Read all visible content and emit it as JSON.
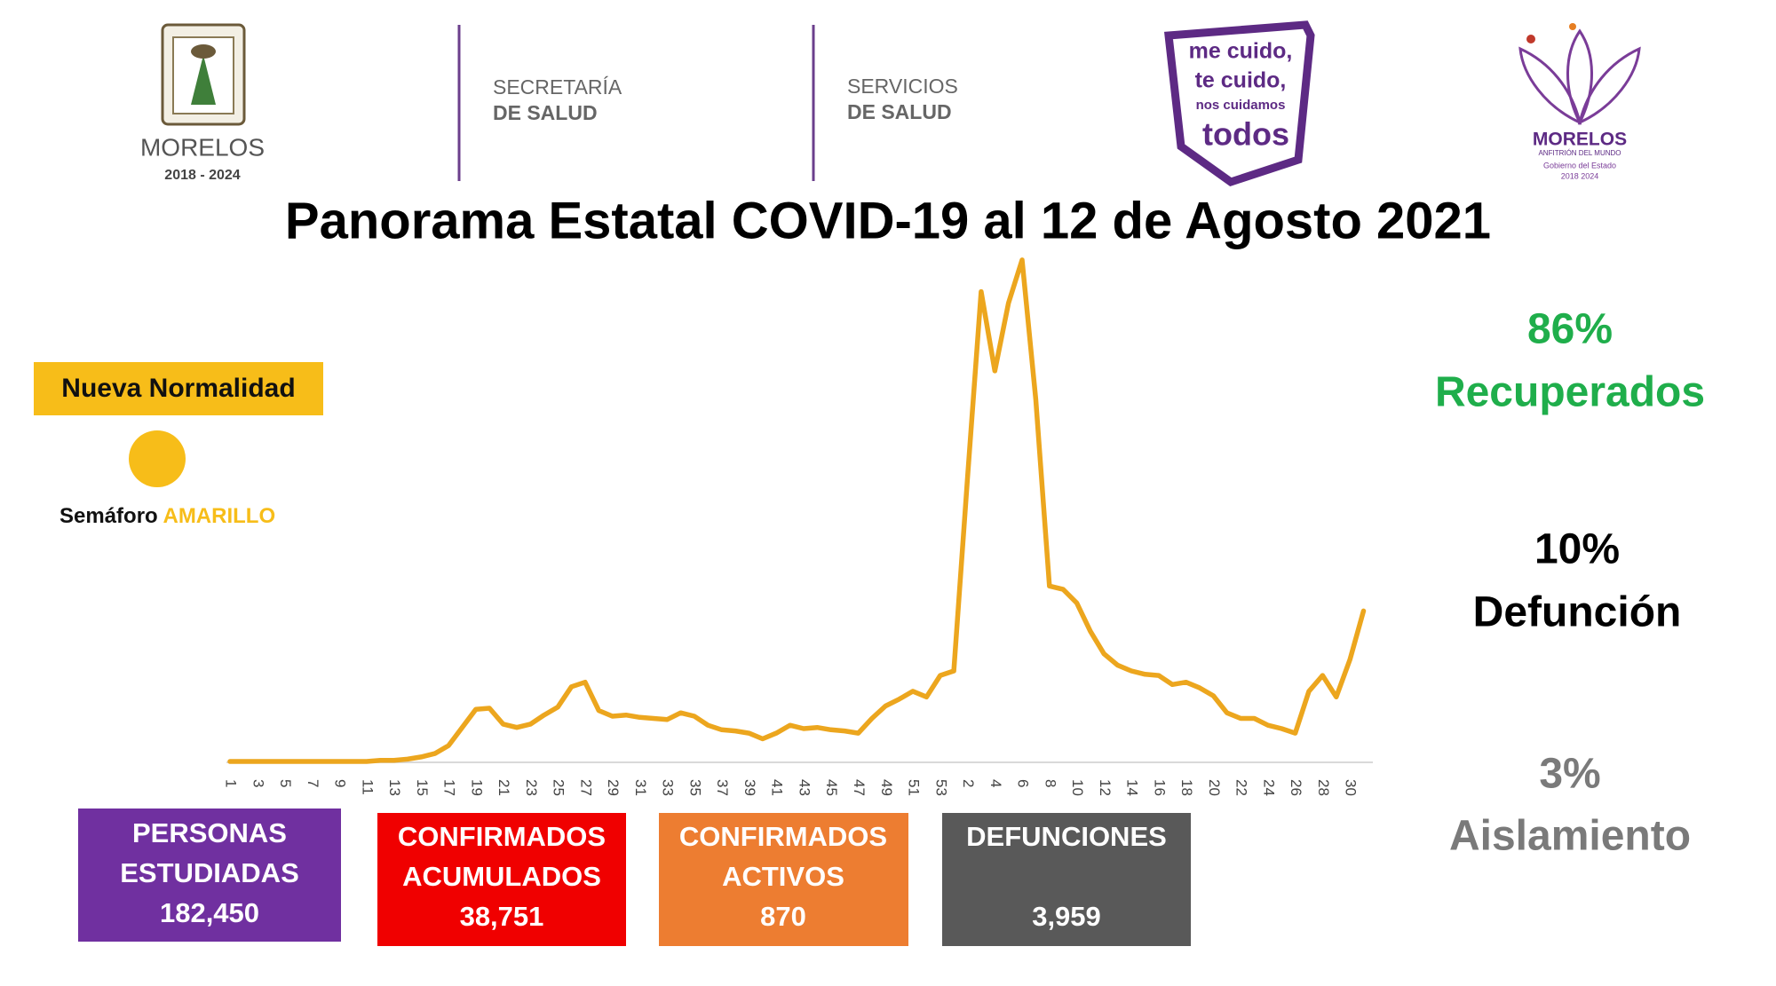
{
  "logos": {
    "state": {
      "name": "MORELOS",
      "years": "2018 - 2024"
    },
    "secretaria": {
      "line1": "SECRETARÍA",
      "line2": "DE SALUD"
    },
    "servicios": {
      "line1": "SERVICIOS",
      "line2": "DE SALUD"
    },
    "campaign": {
      "line1": "me cuido,",
      "line2": "te cuido,",
      "line3": "nos cuidamos",
      "line4": "todos"
    },
    "government": {
      "name": "MORELOS",
      "motto": "ANFITRIÓN DEL MUNDO",
      "line1": "Gobierno del Estado",
      "years": "2018 2024"
    }
  },
  "title": "Panorama Estatal COVID-19 al 12 de Agosto 2021",
  "status": {
    "label": "Nueva Normalidad",
    "semaforo": "Semáforo",
    "color_word": "AMARILLO"
  },
  "rates": [
    {
      "value": "86%",
      "label": "Recuperados"
    },
    {
      "value": "10%",
      "label": "Defunción"
    },
    {
      "value": "3%",
      "label": "Aislamiento"
    }
  ],
  "boxes": [
    {
      "line1": "PERSONAS",
      "line2": "ESTUDIADAS",
      "value": "182,450"
    },
    {
      "line1": "CONFIRMADOS",
      "line2": "ACUMULADOS",
      "value": "38,751"
    },
    {
      "line1": "CONFIRMADOS",
      "line2": "ACTIVOS",
      "value": "870"
    },
    {
      "line1": "DEFUNCIONES",
      "value": "3,959"
    }
  ],
  "chart_data": {
    "type": "line",
    "color": "#eca61e",
    "ylim": [
      0,
      450
    ],
    "categories": [
      "1",
      null,
      "3",
      null,
      "5",
      null,
      "7",
      null,
      "9",
      null,
      "11",
      null,
      "13",
      null,
      "15",
      null,
      "17",
      null,
      "19",
      null,
      "21",
      null,
      "23",
      null,
      "25",
      null,
      "27",
      null,
      "29",
      null,
      "31",
      null,
      "33",
      null,
      "35",
      null,
      "37",
      null,
      "39",
      null,
      "41",
      null,
      "43",
      null,
      "45",
      null,
      "47",
      null,
      "49",
      null,
      "51",
      null,
      "53",
      null,
      "2",
      null,
      "4",
      null,
      "6",
      null,
      "8",
      null,
      "10",
      null,
      "12",
      null,
      "14",
      null,
      "16",
      null,
      "18",
      null,
      "20",
      null,
      "22",
      null,
      "24",
      null,
      "26",
      null,
      "28",
      null,
      "30",
      null
    ],
    "values": [
      0,
      0,
      0,
      0,
      0,
      0,
      0,
      0,
      0,
      0,
      0,
      1,
      1,
      2,
      4,
      7,
      14,
      30,
      46,
      47,
      33,
      30,
      33,
      41,
      48,
      66,
      70,
      45,
      40,
      41,
      39,
      38,
      37,
      43,
      40,
      32,
      28,
      27,
      25,
      20,
      25,
      32,
      29,
      30,
      28,
      27,
      25,
      38,
      49,
      55,
      62,
      57,
      76,
      80,
      250,
      415,
      345,
      405,
      443,
      320,
      155,
      152,
      140,
      115,
      95,
      85,
      80,
      77,
      76,
      68,
      70,
      65,
      58,
      43,
      38,
      38,
      32,
      29,
      25,
      62,
      76,
      57,
      90,
      133
    ]
  }
}
